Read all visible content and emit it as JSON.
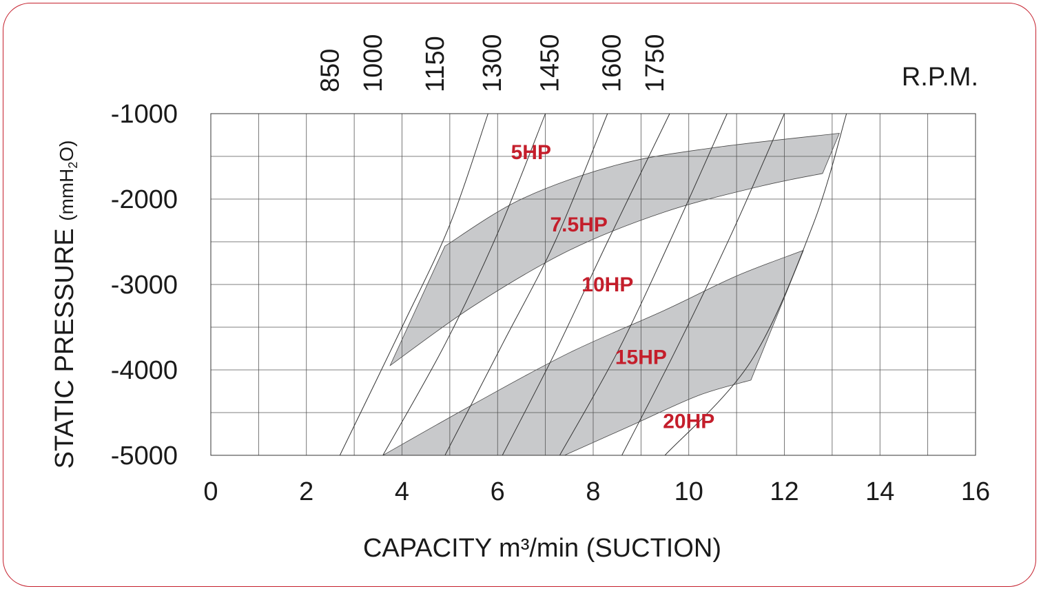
{
  "chart_data": {
    "type": "line",
    "xlabel": "CAPACITY m³/min (SUCTION)",
    "ylabel_main": "STATIC PRESSURE ",
    "ylabel_unit_pre": "(mmH",
    "ylabel_unit_sub": "2",
    "ylabel_unit_post": "O)",
    "rpm_label": "R.P.M.",
    "xlim": [
      0,
      16
    ],
    "ylim": [
      -1000,
      -5000
    ],
    "x_ticks": [
      0,
      2,
      4,
      6,
      8,
      10,
      12,
      14,
      16
    ],
    "y_ticks": [
      -5000,
      -4000,
      -3000,
      -2000,
      -1000
    ],
    "grid": true,
    "colors": {
      "frame": "#c41e2b",
      "band": "#c8c9cb",
      "label": "#c41e2b",
      "grid": "#555555"
    },
    "rpm_curves": [
      {
        "label": "850",
        "points": [
          [
            2.7,
            -5000
          ],
          [
            4.0,
            -3500
          ],
          [
            5.0,
            -2300
          ],
          [
            5.8,
            -1000
          ]
        ]
      },
      {
        "label": "1000",
        "points": [
          [
            3.6,
            -5000
          ],
          [
            4.9,
            -3700
          ],
          [
            6.0,
            -2400
          ],
          [
            7.0,
            -1000
          ]
        ]
      },
      {
        "label": "1150",
        "points": [
          [
            4.9,
            -5000
          ],
          [
            6.1,
            -3700
          ],
          [
            7.2,
            -2500
          ],
          [
            8.3,
            -1000
          ]
        ]
      },
      {
        "label": "1300",
        "points": [
          [
            6.1,
            -5000
          ],
          [
            7.2,
            -3800
          ],
          [
            8.3,
            -2500
          ],
          [
            9.6,
            -1000
          ]
        ]
      },
      {
        "label": "1450",
        "points": [
          [
            7.3,
            -5000
          ],
          [
            8.5,
            -3800
          ],
          [
            9.6,
            -2500
          ],
          [
            10.8,
            -1000
          ]
        ]
      },
      {
        "label": "1600",
        "points": [
          [
            8.6,
            -5000
          ],
          [
            9.7,
            -3800
          ],
          [
            10.9,
            -2400
          ],
          [
            12.0,
            -1000
          ]
        ]
      },
      {
        "label": "1750",
        "points": [
          [
            9.5,
            -5000
          ],
          [
            11.3,
            -3900
          ],
          [
            12.6,
            -2300
          ],
          [
            13.3,
            -1000
          ]
        ]
      }
    ],
    "bands": [
      {
        "upper": [
          [
            3.6,
            -5000
          ],
          [
            5.5,
            -4400
          ],
          [
            7.5,
            -3800
          ],
          [
            9.5,
            -3300
          ],
          [
            11.0,
            -2900
          ],
          [
            12.4,
            -2600
          ]
        ],
        "lower": [
          [
            3.75,
            -3950
          ],
          [
            5.5,
            -3250
          ],
          [
            7.5,
            -2600
          ],
          [
            9.5,
            -2150
          ],
          [
            11.5,
            -1850
          ],
          [
            12.8,
            -1700
          ]
        ],
        "upper_end": [
          [
            7.4,
            -5000
          ],
          [
            8.8,
            -4650
          ],
          [
            10.2,
            -4300
          ],
          [
            11.3,
            -4120
          ],
          [
            12.4,
            -2600
          ]
        ],
        "lower_start": [
          [
            3.75,
            -3950
          ],
          [
            4.9,
            -2550
          ],
          [
            6.5,
            -2000
          ],
          [
            8.5,
            -1600
          ],
          [
            10.5,
            -1400
          ],
          [
            13.15,
            -1230
          ],
          [
            12.8,
            -1700
          ]
        ]
      }
    ],
    "hp_labels": [
      {
        "label": "20HP",
        "x": 10.0,
        "y": -4600
      },
      {
        "label": "15HP",
        "x": 9.0,
        "y": -3850
      },
      {
        "label": "10HP",
        "x": 8.3,
        "y": -3000
      },
      {
        "label": "7.5HP",
        "x": 7.7,
        "y": -2300
      },
      {
        "label": "5HP",
        "x": 6.7,
        "y": -1450
      }
    ]
  }
}
